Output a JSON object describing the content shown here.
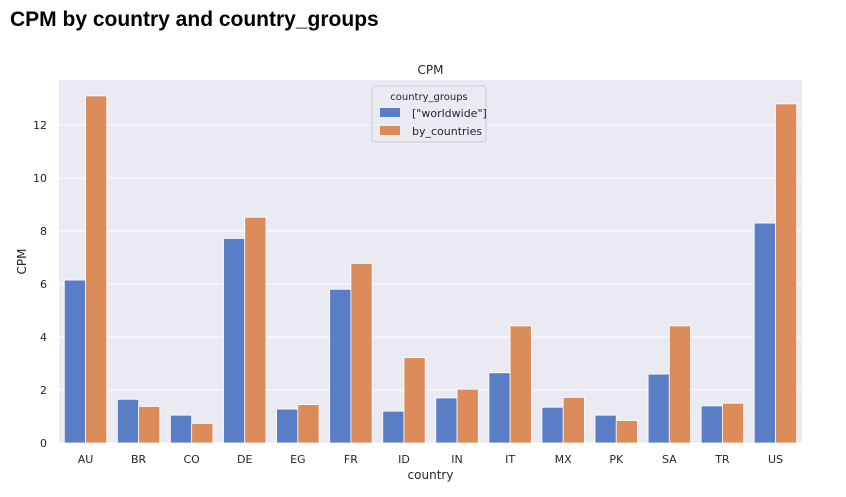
{
  "page": {
    "title": "CPM by country and country_groups"
  },
  "chart_data": {
    "type": "bar",
    "title": "CPM",
    "xlabel": "country",
    "ylabel": "CPM",
    "categories": [
      "AU",
      "BR",
      "CO",
      "DE",
      "EG",
      "FR",
      "ID",
      "IN",
      "IT",
      "MX",
      "PK",
      "SA",
      "TR",
      "US"
    ],
    "series": [
      {
        "name": "[\"worldwide\"]",
        "color": "#5a7ec5",
        "values": [
          6.15,
          1.65,
          1.05,
          7.72,
          1.28,
          5.8,
          1.2,
          1.7,
          2.65,
          1.35,
          1.05,
          2.6,
          1.4,
          8.3
        ]
      },
      {
        "name": "by_countries",
        "color": "#dc8b5a",
        "values": [
          13.1,
          1.38,
          0.74,
          8.52,
          1.45,
          6.78,
          3.22,
          2.03,
          4.42,
          1.72,
          0.85,
          4.42,
          1.5,
          12.8
        ]
      }
    ],
    "ylim": [
      0,
      13.7
    ],
    "yticks": [
      0,
      2,
      4,
      6,
      8,
      10,
      12
    ],
    "grid": true,
    "legend": {
      "title": "country_groups",
      "placement": "top-center"
    }
  }
}
